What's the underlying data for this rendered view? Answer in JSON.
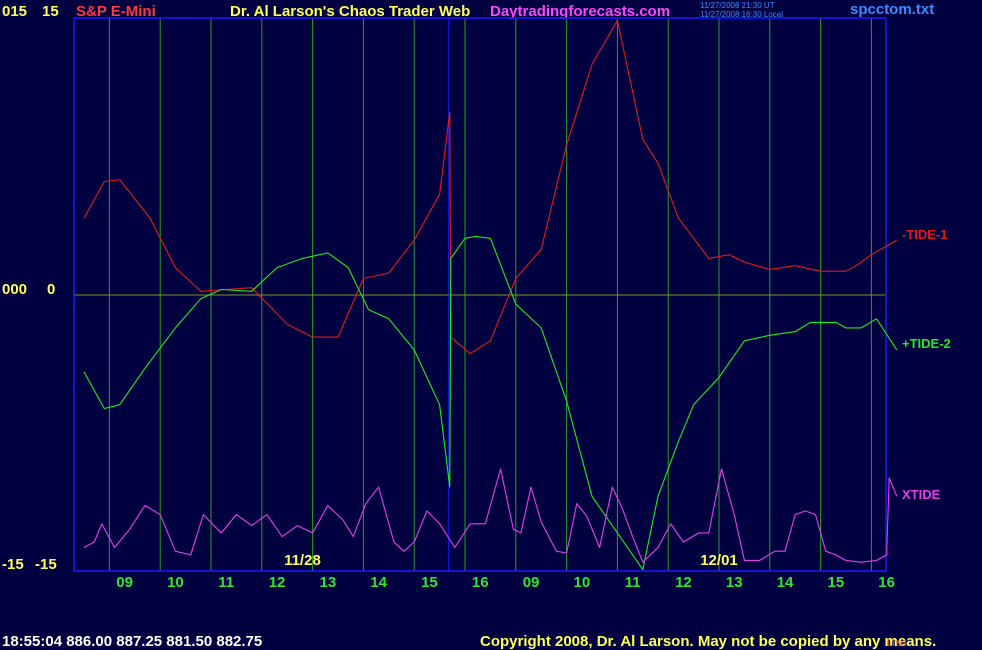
{
  "header": {
    "left_top_value": "015",
    "left_top_scale": "15",
    "symbol": "S&P E-Mini",
    "title": "Dr. Al Larson's Chaos Trader Web",
    "site": "Daytradingforecasts.com",
    "utc_stamp": "11/27/2008 21:30 UT",
    "local_stamp": "11/27/2008 16:30 Local",
    "file": "spcctom.txt"
  },
  "y_axis": {
    "mid_value": "000",
    "mid_scale": "0",
    "bottom_value": "-15",
    "bottom_scale": "-15"
  },
  "footer": {
    "status": "18:55:04  886.00 887.25 881.50 882.75",
    "copyright": "Copyright 2008, Dr. Al Larson. May not be copied by any means.",
    "corner_tag": "Lrsn"
  },
  "colors": {
    "background": "#000040",
    "frame": "#1a1aff",
    "grid_vertical": "#23a023",
    "zero_line": "#7a9a1a",
    "tide1": "#e01a1a",
    "tide2": "#1aee1a",
    "xtide": "#e83ee8",
    "tick_labels": "#2ee62e",
    "date_labels": "#ffff55",
    "header_red": "#ff3a3a",
    "header_yellow": "#ffff55",
    "header_magenta": "#ff44ff",
    "header_blue": "#3a8cff",
    "left_labels": "#ffff55",
    "footer_white": "#ffffff",
    "footer_yellow": "#ffff55"
  },
  "chart_data": {
    "type": "line",
    "ylim": [
      -15,
      15
    ],
    "x_tick_labels": [
      "09",
      "10",
      "11",
      "12",
      "13",
      "14",
      "15",
      "16",
      "09",
      "10",
      "11",
      "12",
      "13",
      "14",
      "15",
      "16"
    ],
    "date_labels": [
      "11/28",
      "12/01"
    ],
    "zero_line": true,
    "grid_vertical": true,
    "series": [
      {
        "name": "-TIDE-1",
        "x": [
          0,
          0.4,
          0.7,
          1.3,
          1.8,
          2.3,
          2.8,
          3.3,
          4.0,
          4.5,
          5.0,
          5.5,
          6.0,
          6.5,
          7.0,
          7.2,
          7.22,
          7.6,
          8.0,
          8.5,
          9.0,
          9.5,
          10.0,
          10.5,
          11.0,
          11.3,
          11.7,
          12.3,
          12.7,
          13.0,
          13.5,
          14.0,
          14.5,
          15.0,
          15.2,
          15.5,
          16.0
        ],
        "y": [
          4.2,
          6.2,
          6.3,
          4.2,
          1.5,
          0.2,
          0.3,
          0.4,
          -1.6,
          -2.3,
          -2.3,
          0.9,
          1.2,
          3.0,
          5.5,
          10.0,
          -2.3,
          -3.2,
          -2.5,
          0.9,
          2.5,
          8.2,
          12.6,
          15.0,
          8.5,
          7.2,
          4.2,
          2.0,
          2.2,
          1.8,
          1.4,
          1.6,
          1.3,
          1.3,
          1.6,
          2.2,
          3.0
        ]
      },
      {
        "name": "+TIDE-2",
        "x": [
          0,
          0.4,
          0.7,
          1.2,
          1.8,
          2.3,
          2.7,
          3.3,
          3.8,
          4.3,
          4.8,
          5.2,
          5.6,
          6.0,
          6.5,
          7.0,
          7.2,
          7.22,
          7.5,
          7.7,
          8.0,
          8.5,
          9.0,
          9.5,
          10.0,
          10.5,
          11.0,
          11.3,
          11.7,
          12.0,
          12.5,
          13.0,
          13.5,
          14.0,
          14.3,
          14.8,
          15.0,
          15.3,
          15.6,
          16.0
        ],
        "y": [
          -4.2,
          -6.2,
          -6.0,
          -4.0,
          -1.8,
          -0.2,
          0.3,
          0.2,
          1.5,
          2.0,
          2.3,
          1.5,
          -0.8,
          -1.3,
          -3.0,
          -6.0,
          -10.5,
          2.0,
          3.1,
          3.2,
          3.1,
          -0.5,
          -1.8,
          -5.8,
          -11.0,
          -13.0,
          -15.0,
          -11.0,
          -8.0,
          -6.0,
          -4.5,
          -2.5,
          -2.2,
          -2.0,
          -1.5,
          -1.5,
          -1.8,
          -1.8,
          -1.3,
          -3.0
        ]
      },
      {
        "name": "XTIDE",
        "x": [
          0,
          0.2,
          0.35,
          0.6,
          0.9,
          1.2,
          1.5,
          1.8,
          2.1,
          2.35,
          2.7,
          3.0,
          3.3,
          3.6,
          3.9,
          4.2,
          4.5,
          4.8,
          5.1,
          5.3,
          5.55,
          5.8,
          6.1,
          6.3,
          6.5,
          6.75,
          7.0,
          7.3,
          7.6,
          7.9,
          8.2,
          8.45,
          8.6,
          8.8,
          9.0,
          9.3,
          9.5,
          9.7,
          9.9,
          10.15,
          10.4,
          10.6,
          10.8,
          11.0,
          11.3,
          11.55,
          11.8,
          12.1,
          12.3,
          12.55,
          12.8,
          13.0,
          13.3,
          13.6,
          13.8,
          14.0,
          14.2,
          14.4,
          14.6,
          14.8,
          15.0,
          15.3,
          15.6,
          15.8,
          15.85,
          16.0
        ],
        "y": [
          -13.8,
          -13.5,
          -12.5,
          -13.8,
          -12.8,
          -11.5,
          -12.0,
          -14.0,
          -14.2,
          -12.0,
          -13.0,
          -12.0,
          -12.6,
          -12.0,
          -13.2,
          -12.6,
          -13.0,
          -11.5,
          -12.3,
          -13.2,
          -11.4,
          -10.5,
          -13.5,
          -14.0,
          -13.5,
          -11.8,
          -12.5,
          -13.8,
          -12.5,
          -12.5,
          -9.5,
          -12.8,
          -13.0,
          -10.5,
          -12.4,
          -14.0,
          -14.1,
          -11.4,
          -12.1,
          -13.8,
          -10.5,
          -11.7,
          -13.2,
          -14.6,
          -13.8,
          -12.5,
          -13.5,
          -13.0,
          -13.0,
          -9.5,
          -12.0,
          -14.5,
          -14.5,
          -14.0,
          -14.0,
          -12.0,
          -11.8,
          -12.0,
          -14.0,
          -14.2,
          -14.5,
          -14.6,
          -14.5,
          -14.2,
          -10.0,
          -11.0
        ]
      }
    ],
    "legend": [
      {
        "label": "-TIDE-1",
        "series": "-TIDE-1"
      },
      {
        "label": "+TIDE-2",
        "series": "+TIDE-2"
      },
      {
        "label": "XTIDE",
        "series": "XTIDE"
      }
    ]
  }
}
